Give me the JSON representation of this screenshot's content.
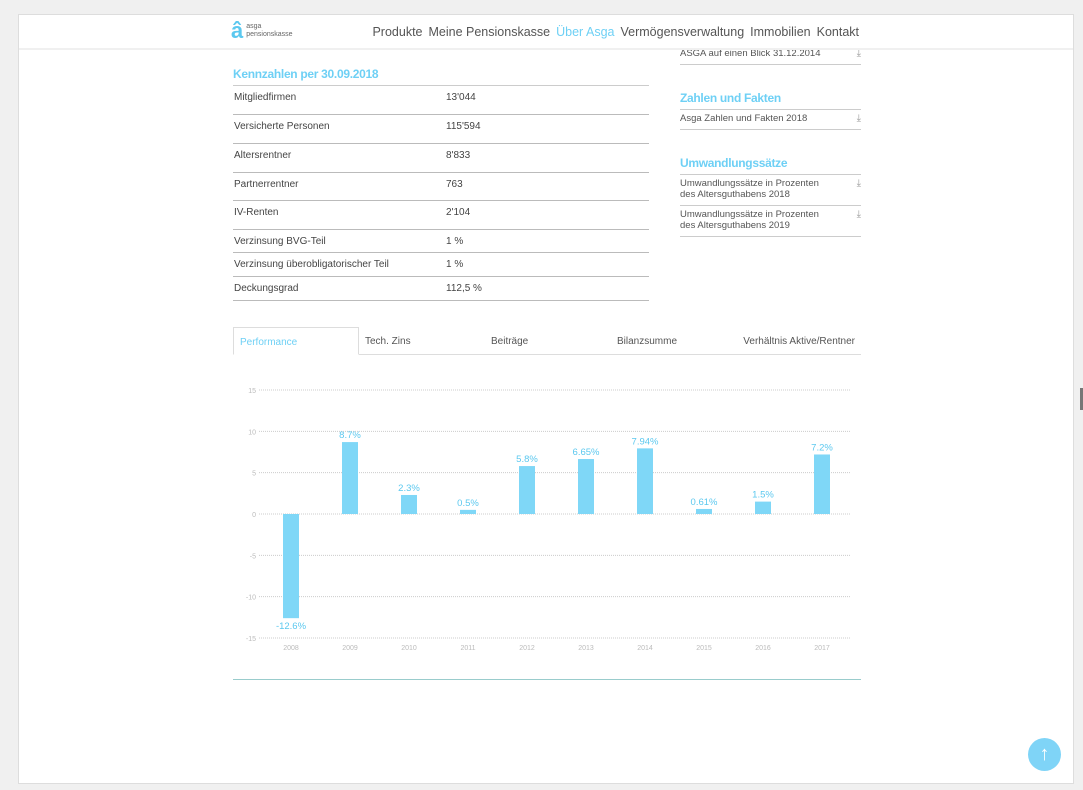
{
  "header": {
    "logo_mark": "â",
    "logo_line1": "asga",
    "logo_line2": "pensionskasse",
    "nav": [
      "Produkte",
      "Meine Pensionskasse",
      "Über Asga",
      "Vermögensverwaltung",
      "Immobilien",
      "Kontakt"
    ],
    "active_nav": "Über Asga"
  },
  "kennzahlen": {
    "title": "Kennzahlen per 30.09.2018",
    "rows": [
      [
        "Mitgliedfirmen",
        "13'044"
      ],
      [
        "Versicherte Personen",
        "115'594"
      ],
      [
        "Altersrentner",
        "8'833"
      ],
      [
        "Partnerrentner",
        "763"
      ],
      [
        "IV-Renten",
        "2'104"
      ],
      [
        "Verzinsung BVG-Teil",
        "1 %"
      ],
      [
        "Verzinsung überobligatorischer Teil",
        "1 %"
      ],
      [
        "Deckungsgrad",
        "112,5 %"
      ]
    ]
  },
  "sidebar": {
    "top_doc": "ASGA auf einen Blick 31.12.2014",
    "zahlen_title": "Zahlen und Fakten",
    "zahlen_docs": [
      "Asga Zahlen und Fakten 2018"
    ],
    "umw_title": "Umwandlungssätze",
    "umw_docs": [
      "Umwandlungssätze in Prozenten des Altersguthabens 2018",
      "Umwandlungssätze in Prozenten des Altersguthabens 2019"
    ],
    "download_icon": "download-icon"
  },
  "tabs": [
    "Performance",
    "Tech. Zins",
    "Beiträge",
    "Bilanzsumme",
    "Verhältnis Aktive/Rentner"
  ],
  "active_tab": "Performance",
  "chart_data": {
    "type": "bar",
    "categories": [
      "2008",
      "2009",
      "2010",
      "2011",
      "2012",
      "2013",
      "2014",
      "2015",
      "2016",
      "2017"
    ],
    "values": [
      -12.6,
      8.7,
      2.3,
      0.5,
      5.8,
      6.65,
      7.94,
      0.61,
      1.5,
      7.2
    ],
    "labels": [
      "-12.6%",
      "8.7%",
      "2.3%",
      "0.5%",
      "5.8%",
      "6.65%",
      "7.94%",
      "0.61%",
      "1.5%",
      "7.2%"
    ],
    "yticks": [
      "15",
      "10",
      "5",
      "0",
      "-5",
      "-10",
      "-15"
    ],
    "ylim": [
      -15,
      15
    ],
    "grid": true,
    "color": "#7fd7f7"
  },
  "scroll_top_icon": "arrow-up-icon"
}
